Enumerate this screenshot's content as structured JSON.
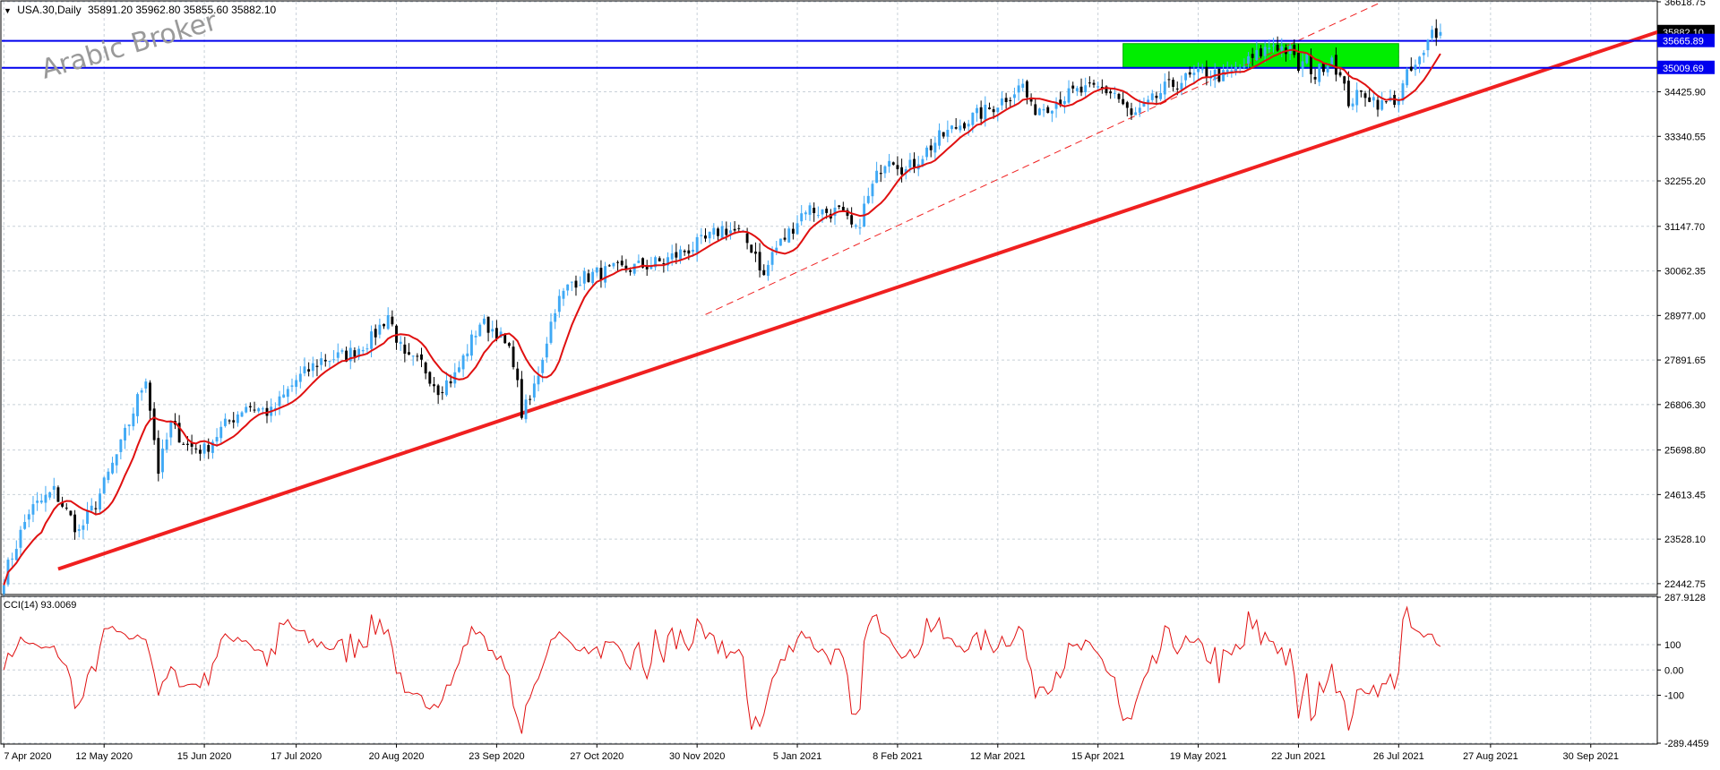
{
  "header": {
    "menu_marker": "▼",
    "symbol": "USA.30,Daily",
    "ohlc": "35891.20 35962.80 35855.60 35882.10"
  },
  "watermark": "Arabic Broker",
  "colors": {
    "bull": "#3fa9f5",
    "bear": "#000000",
    "ma": "#e01010",
    "trendline": "#f02020",
    "hline": "#0000ee",
    "zone": "#00ee00",
    "cci": "#e01010",
    "price_tag": "#0000ee",
    "grid": "#c8d0d8"
  },
  "chart_data": [
    {
      "type": "candlestick",
      "title": "USA.30,Daily",
      "ylim": [
        22200,
        36618.75
      ],
      "y_ticks": [
        "36618.75",
        "35882.10",
        "35665.89",
        "35009.69",
        "34425.90",
        "33340.55",
        "32255.20",
        "31147.70",
        "30062.35",
        "28977.00",
        "27891.65",
        "26806.30",
        "25698.80",
        "24613.45",
        "23528.10",
        "22442.75"
      ],
      "y_tick_values": [
        36618.75,
        34425.9,
        33340.55,
        32255.2,
        31147.7,
        30062.35,
        28977.0,
        27891.65,
        26806.3,
        25698.8,
        24613.45,
        23528.1,
        22442.75
      ],
      "x_labels": [
        "7 Apr 2020",
        "12 May 2020",
        "15 Jun 2020",
        "17 Jul 2020",
        "20 Aug 2020",
        "23 Sep 2020",
        "27 Oct 2020",
        "30 Nov 2020",
        "5 Jan 2021",
        "8 Feb 2021",
        "12 Mar 2021",
        "15 Apr 2021",
        "19 May 2021",
        "22 Jun 2021",
        "26 Jul 2021",
        "27 Aug 2021",
        "30 Sep 2021"
      ],
      "x_label_index": [
        0,
        24,
        48,
        70,
        94,
        118,
        142,
        166,
        190,
        214,
        238,
        262,
        286,
        310,
        334,
        356,
        380
      ],
      "bars_count": 396,
      "right_padding_bars": 52,
      "close_anchors": [
        [
          0,
          22600
        ],
        [
          6,
          24200
        ],
        [
          12,
          24700
        ],
        [
          18,
          23700
        ],
        [
          22,
          24400
        ],
        [
          28,
          25800
        ],
        [
          34,
          27500
        ],
        [
          37,
          25200
        ],
        [
          40,
          26300
        ],
        [
          44,
          25800
        ],
        [
          48,
          25700
        ],
        [
          52,
          26200
        ],
        [
          58,
          26800
        ],
        [
          64,
          26600
        ],
        [
          70,
          27400
        ],
        [
          76,
          27900
        ],
        [
          82,
          28000
        ],
        [
          88,
          28400
        ],
        [
          92,
          29000
        ],
        [
          96,
          27900
        ],
        [
          100,
          27800
        ],
        [
          104,
          27200
        ],
        [
          108,
          27500
        ],
        [
          114,
          28800
        ],
        [
          118,
          28600
        ],
        [
          122,
          27900
        ],
        [
          124,
          26600
        ],
        [
          126,
          26900
        ],
        [
          128,
          27600
        ],
        [
          132,
          29200
        ],
        [
          136,
          29800
        ],
        [
          142,
          30000
        ],
        [
          148,
          30100
        ],
        [
          154,
          30200
        ],
        [
          158,
          30300
        ],
        [
          164,
          30600
        ],
        [
          168,
          30800
        ],
        [
          172,
          31100
        ],
        [
          176,
          31000
        ],
        [
          180,
          30500
        ],
        [
          182,
          29900
        ],
        [
          184,
          30500
        ],
        [
          188,
          31000
        ],
        [
          192,
          31600
        ],
        [
          196,
          31500
        ],
        [
          200,
          31500
        ],
        [
          204,
          31000
        ],
        [
          206,
          31600
        ],
        [
          210,
          32600
        ],
        [
          212,
          32900
        ],
        [
          216,
          32500
        ],
        [
          220,
          32900
        ],
        [
          224,
          33300
        ],
        [
          230,
          33700
        ],
        [
          236,
          34000
        ],
        [
          240,
          34300
        ],
        [
          244,
          34600
        ],
        [
          246,
          34000
        ],
        [
          250,
          34100
        ],
        [
          256,
          34400
        ],
        [
          262,
          34500
        ],
        [
          266,
          34400
        ],
        [
          270,
          33800
        ],
        [
          274,
          34100
        ],
        [
          278,
          34500
        ],
        [
          282,
          34700
        ],
        [
          288,
          34900
        ],
        [
          292,
          34800
        ],
        [
          296,
          35000
        ],
        [
          300,
          35300
        ],
        [
          304,
          35600
        ],
        [
          308,
          35400
        ],
        [
          310,
          35000
        ],
        [
          312,
          35200
        ],
        [
          314,
          34800
        ],
        [
          316,
          35100
        ],
        [
          318,
          35300
        ],
        [
          322,
          34200
        ],
        [
          326,
          34400
        ],
        [
          330,
          34100
        ],
        [
          334,
          34300
        ],
        [
          336,
          34800
        ],
        [
          340,
          35300
        ],
        [
          342,
          35900
        ],
        [
          344,
          35882
        ]
      ],
      "ma_period": 10,
      "series": [
        {
          "name": "",
          "kind": "candles"
        },
        {
          "name": "",
          "kind": "moving_average"
        }
      ],
      "trendlines": [
        {
          "style": "solid",
          "points": [
            [
              13,
              22800
            ],
            [
              396,
              35882
            ]
          ]
        },
        {
          "style": "dashed",
          "points": [
            [
              168,
              29000
            ],
            [
              330,
              36618
            ]
          ]
        }
      ],
      "horizontal_lines": [
        {
          "value": 35665.89,
          "label": "35665.89"
        },
        {
          "value": 35009.69,
          "label": "35009.69"
        }
      ],
      "last_price_label": "35882.10",
      "zone": {
        "x_start_index": 268,
        "x_end_index": 334,
        "y_low": 35000,
        "y_high": 35600
      },
      "grid": true,
      "legend": "none"
    },
    {
      "type": "line",
      "title": "CCI(14) 93.0069",
      "ylim": [
        -289.4459,
        287.9128
      ],
      "y_ticks": [
        "287.9128",
        "100",
        "0.00",
        "-100",
        "-289.4459"
      ],
      "y_tick_values": [
        287.9128,
        100,
        0,
        -100,
        -289.4459
      ],
      "series": [
        {
          "name": "",
          "kind": "cci"
        }
      ],
      "grid": true,
      "legend": "none"
    }
  ]
}
